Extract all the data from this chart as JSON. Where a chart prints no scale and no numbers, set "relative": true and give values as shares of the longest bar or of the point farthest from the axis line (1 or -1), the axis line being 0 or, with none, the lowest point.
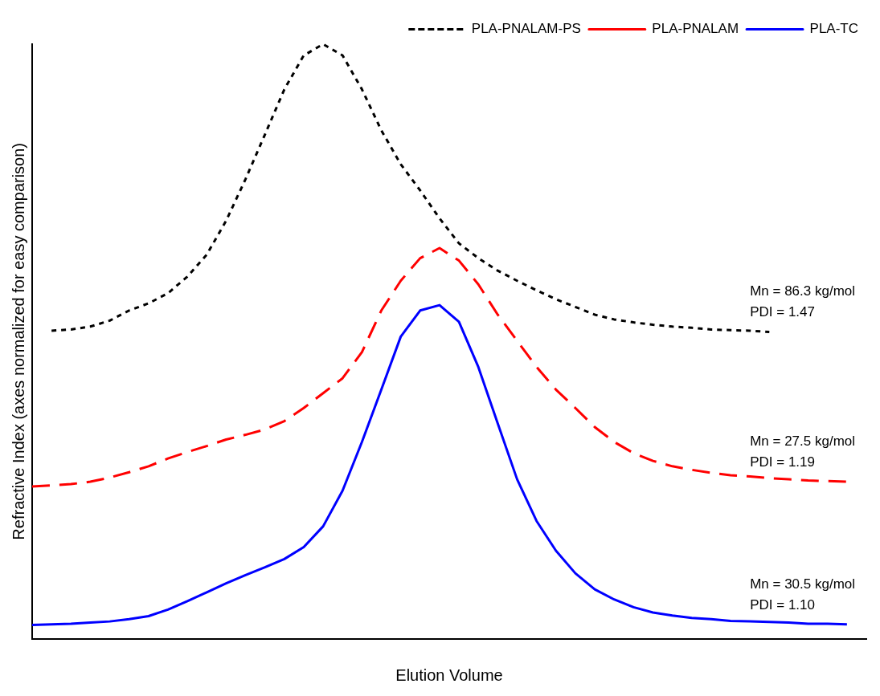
{
  "chart_data": {
    "type": "line",
    "relative": true,
    "xlabel": "Elution Volume",
    "ylabel": "Refractive Index (axes normalized for easy comparison)",
    "categories": [
      null,
      null,
      null,
      null,
      null,
      null,
      null,
      null,
      null,
      null,
      null,
      null,
      null,
      null,
      null,
      null,
      null,
      null,
      null,
      null,
      null,
      null,
      null,
      null,
      null,
      null,
      null,
      null,
      null,
      null,
      null,
      null,
      null,
      null,
      null,
      null,
      null,
      null,
      null,
      null,
      null,
      null,
      null,
      null
    ],
    "series": [
      {
        "name": "PLA-PNALAM-PS",
        "color": "#000000",
        "line_style": "dotted",
        "values": [
          null,
          0.518,
          0.52,
          0.525,
          0.535,
          0.552,
          0.564,
          0.581,
          0.609,
          0.646,
          0.703,
          0.773,
          0.848,
          0.924,
          0.981,
          1.0,
          0.981,
          0.924,
          0.855,
          0.798,
          0.754,
          0.707,
          0.665,
          0.64,
          0.619,
          0.602,
          0.586,
          0.571,
          0.558,
          0.545,
          0.537,
          0.532,
          0.528,
          0.525,
          0.523,
          0.52,
          0.519,
          0.518,
          0.516,
          null,
          null,
          null,
          null,
          null
        ]
      },
      {
        "name": "PLA-PNALAM",
        "color": "#ff0000",
        "line_style": "dashed",
        "values": [
          0.256,
          0.258,
          0.26,
          0.264,
          0.271,
          0.28,
          0.29,
          0.303,
          0.314,
          0.324,
          0.335,
          0.343,
          0.352,
          0.366,
          0.388,
          0.413,
          0.438,
          0.482,
          0.552,
          0.602,
          0.64,
          0.657,
          0.636,
          0.596,
          0.545,
          0.501,
          0.457,
          0.419,
          0.388,
          0.356,
          0.331,
          0.312,
          0.299,
          0.29,
          0.284,
          0.279,
          0.275,
          0.273,
          0.27,
          0.268,
          0.266,
          0.265,
          0.264,
          null
        ]
      },
      {
        "name": "PLA-TC",
        "color": "#0000ff",
        "line_style": "solid",
        "values": [
          0.023,
          0.024,
          0.025,
          0.027,
          0.029,
          0.033,
          0.038,
          0.049,
          0.063,
          0.078,
          0.093,
          0.107,
          0.12,
          0.134,
          0.154,
          0.189,
          0.249,
          0.331,
          0.419,
          0.508,
          0.552,
          0.561,
          0.533,
          0.457,
          0.362,
          0.268,
          0.198,
          0.148,
          0.11,
          0.083,
          0.066,
          0.053,
          0.044,
          0.039,
          0.035,
          0.033,
          0.03,
          0.029,
          0.028,
          0.027,
          0.025,
          0.025,
          0.024,
          null
        ]
      }
    ],
    "annotations": [
      "Mn = 86.3 kg/mol\nPDI = 1.47",
      "Mn = 27.5 kg/mol\nPDI = 1.19",
      "Mn = 30.5 kg/mol\nPDI = 1.10"
    ],
    "legend": "top right",
    "grid": false,
    "marker": "none"
  }
}
